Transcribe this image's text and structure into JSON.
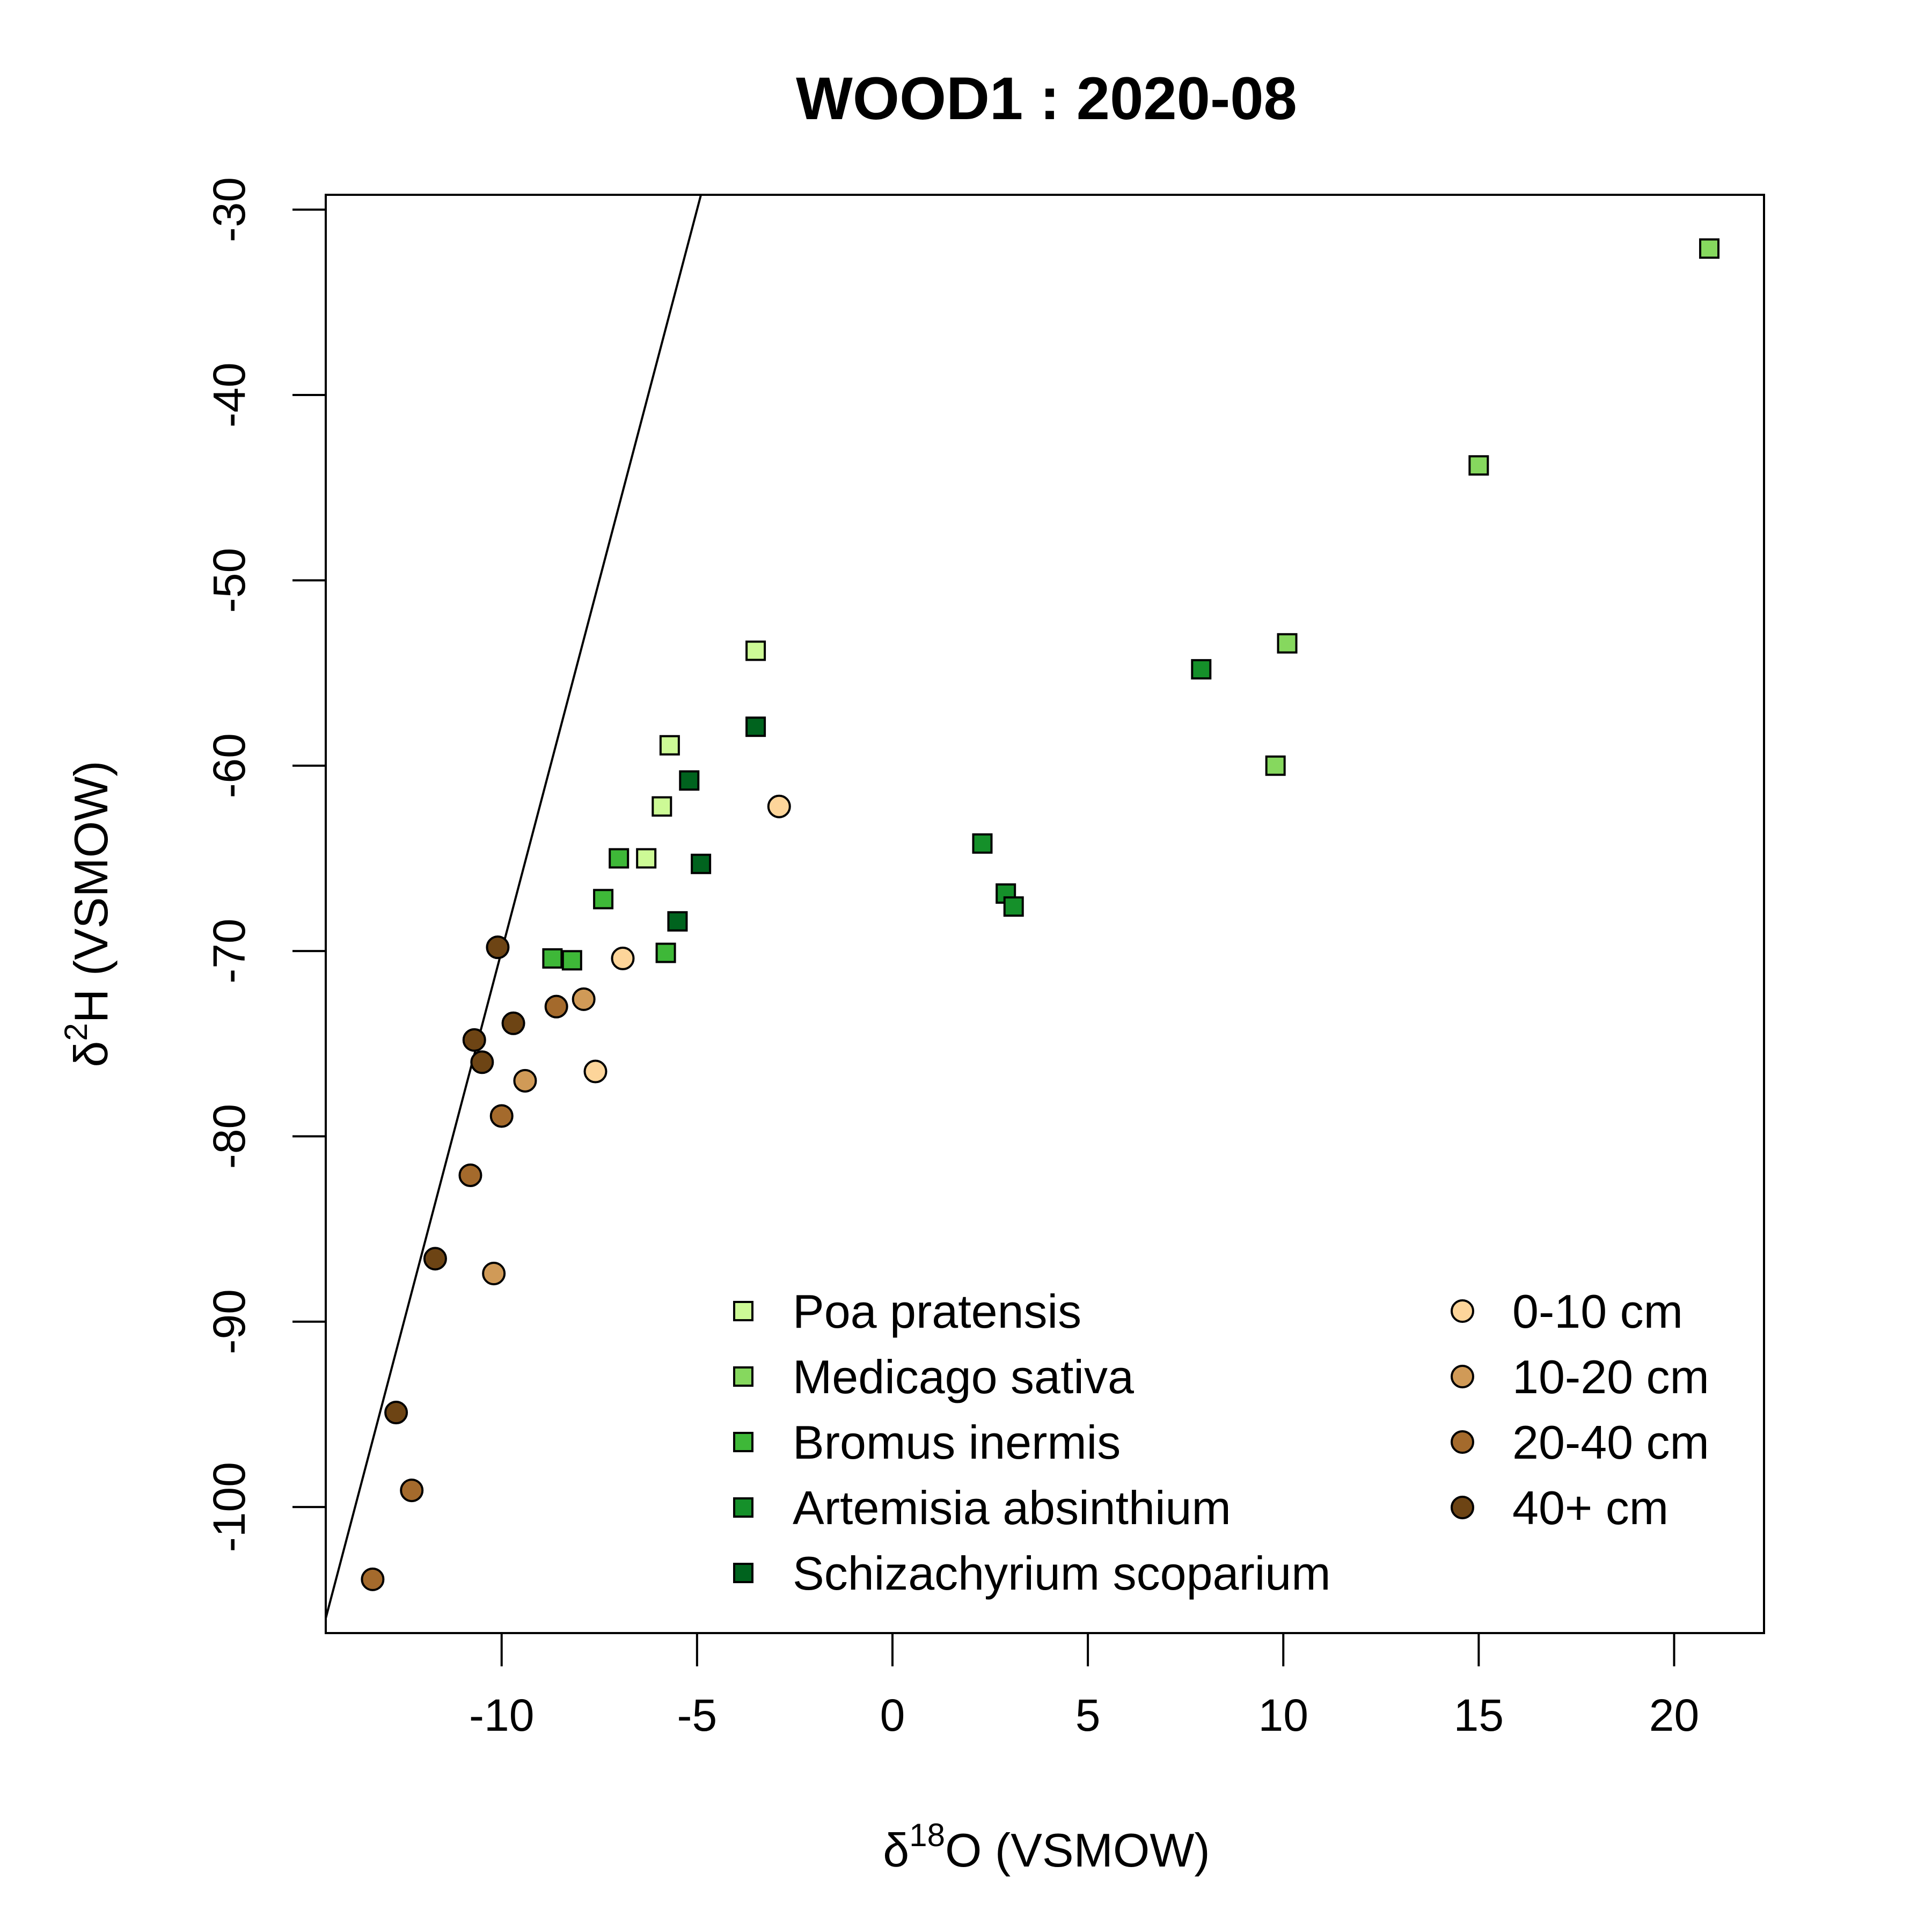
{
  "chart_data": {
    "type": "scatter",
    "title": "WOOD1 : 2020-08",
    "xlabel": {
      "prefix": "δ",
      "sup": "18",
      "main": "O (VSMOW)"
    },
    "ylabel": {
      "prefix": "δ",
      "sup": "2",
      "main": "H (VSMOW)"
    },
    "xlim": [
      -14.5,
      22.3
    ],
    "ylim": [
      -106.8,
      -29.2
    ],
    "xticks": [
      -10,
      -5,
      0,
      5,
      10,
      15,
      20
    ],
    "yticks": [
      -100,
      -90,
      -80,
      -70,
      -60,
      -50,
      -40,
      -30
    ],
    "reference_line": {
      "slope": 8,
      "intercept": 10
    },
    "grid": false,
    "legend_placement": "bottom-right",
    "series": [
      {
        "name": "Poa pratensis",
        "marker": "square",
        "color": "#cdfa96",
        "points": [
          [
            -3.5,
            -53.8
          ],
          [
            -5.7,
            -58.9
          ],
          [
            -5.9,
            -62.2
          ],
          [
            -6.3,
            -65.0
          ]
        ]
      },
      {
        "name": "Medicago sativa",
        "marker": "square",
        "color": "#86d85e",
        "points": [
          [
            20.9,
            -32.1
          ],
          [
            15.0,
            -43.8
          ],
          [
            10.1,
            -53.4
          ],
          [
            9.8,
            -60.0
          ]
        ]
      },
      {
        "name": "Bromus inermis",
        "marker": "square",
        "color": "#3eb838",
        "points": [
          [
            -7.0,
            -65.0
          ],
          [
            -7.4,
            -67.2
          ],
          [
            -8.7,
            -70.4
          ],
          [
            -8.2,
            -70.5
          ],
          [
            -5.8,
            -70.1
          ]
        ]
      },
      {
        "name": "Artemisia absinthium",
        "marker": "square",
        "color": "#15902a",
        "points": [
          [
            7.9,
            -54.8
          ],
          [
            2.3,
            -64.2
          ],
          [
            2.9,
            -66.9
          ],
          [
            3.1,
            -67.6
          ]
        ]
      },
      {
        "name": "Schizachyrium scoparium",
        "marker": "square",
        "color": "#00631e",
        "points": [
          [
            -3.5,
            -57.9
          ],
          [
            -5.2,
            -60.8
          ],
          [
            -4.9,
            -65.3
          ],
          [
            -5.5,
            -68.4
          ]
        ]
      },
      {
        "name": "0-10 cm",
        "marker": "circle",
        "color": "#fdd59a",
        "points": [
          [
            -2.9,
            -62.2
          ],
          [
            -6.9,
            -70.4
          ],
          [
            -7.6,
            -76.5
          ]
        ]
      },
      {
        "name": "10-20 cm",
        "marker": "circle",
        "color": "#d09a57",
        "points": [
          [
            -7.9,
            -72.6
          ],
          [
            -9.4,
            -77.0
          ],
          [
            -10.2,
            -87.4
          ]
        ]
      },
      {
        "name": "20-40 cm",
        "marker": "circle",
        "color": "#a46a2c",
        "points": [
          [
            -8.6,
            -73.0
          ],
          [
            -10.0,
            -78.9
          ],
          [
            -10.8,
            -82.1
          ],
          [
            -12.3,
            -99.1
          ],
          [
            -13.3,
            -103.9
          ]
        ]
      },
      {
        "name": "40+ cm",
        "marker": "circle",
        "color": "#6d4414",
        "points": [
          [
            -10.1,
            -69.8
          ],
          [
            -10.7,
            -74.8
          ],
          [
            -10.5,
            -76.0
          ],
          [
            -9.7,
            -73.9
          ],
          [
            -11.7,
            -86.6
          ],
          [
            -12.7,
            -94.9
          ]
        ]
      }
    ]
  }
}
